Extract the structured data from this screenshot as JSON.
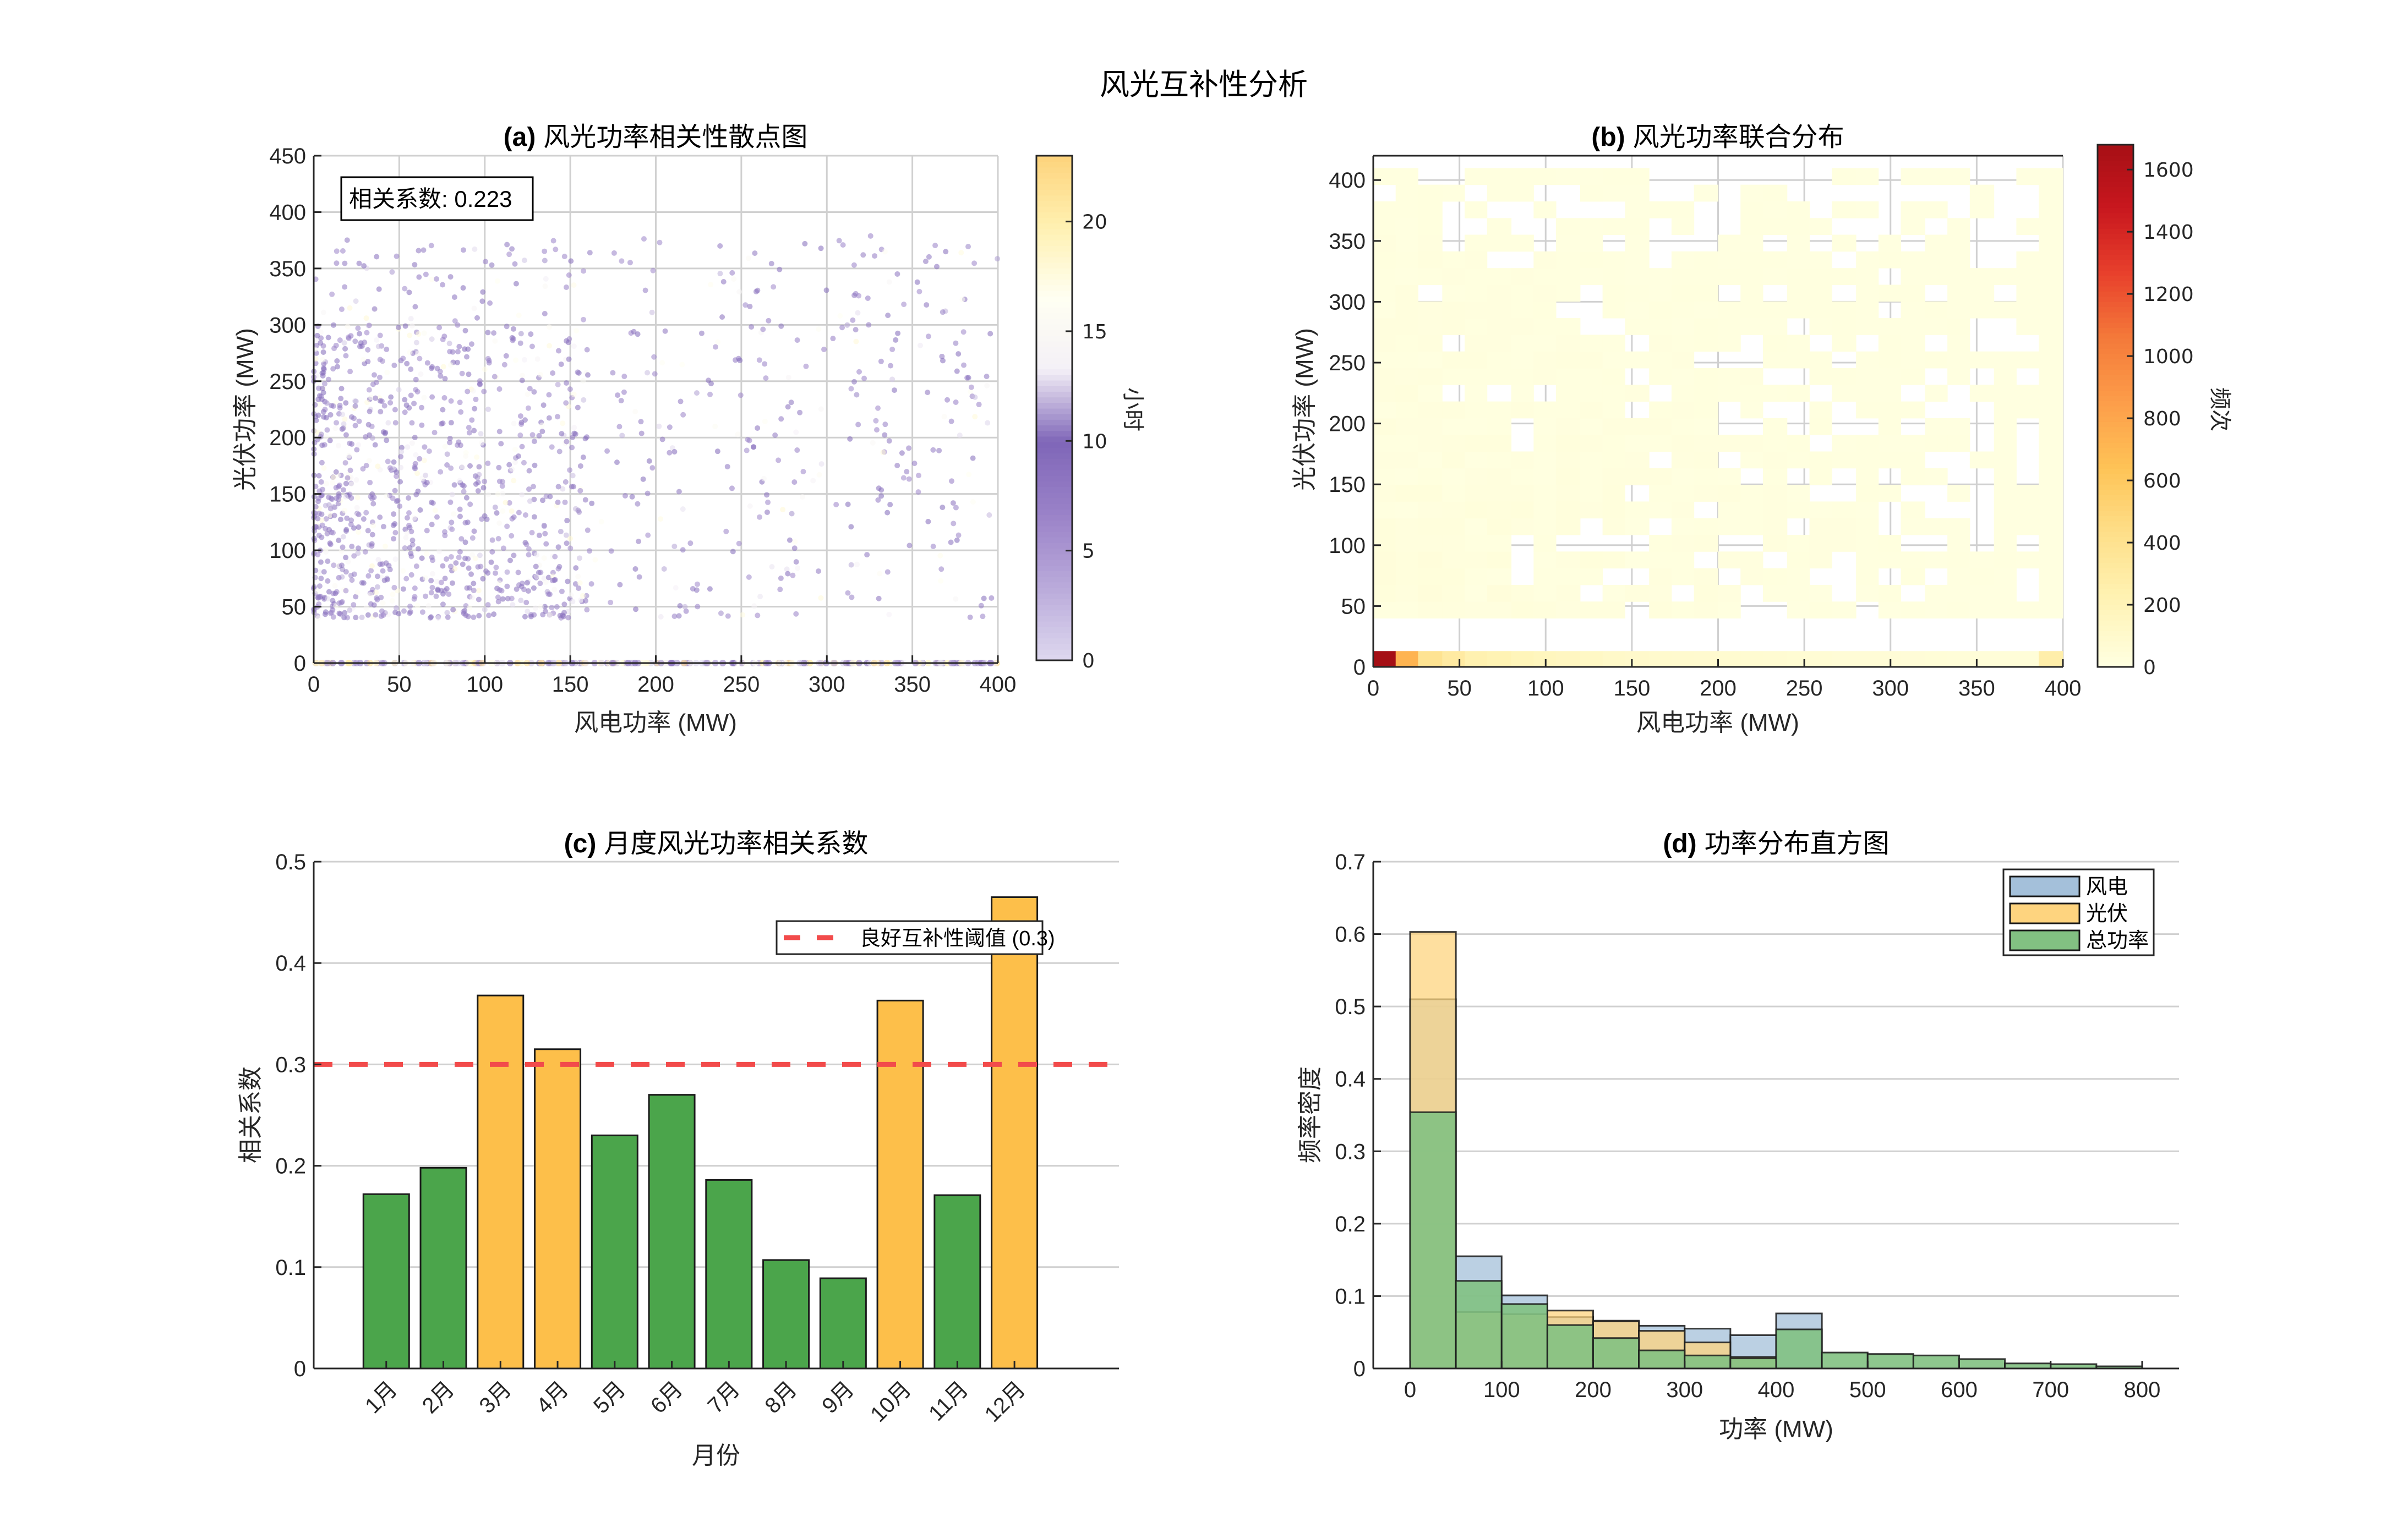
{
  "figure": {
    "title": "风光互补性分析"
  },
  "chart_data": [
    {
      "id": "a",
      "type": "scatter",
      "title_prefix": "(a)",
      "title": "风光功率相关性散点图",
      "xlabel": "风电功率 (MW)",
      "ylabel": "光伏功率 (MW)",
      "xlim": [
        0,
        400
      ],
      "ylim": [
        0,
        450
      ],
      "xticks": [
        0,
        50,
        100,
        150,
        200,
        250,
        300,
        350,
        400
      ],
      "yticks": [
        0,
        50,
        100,
        150,
        200,
        250,
        300,
        350,
        400,
        450
      ],
      "grid": true,
      "annotation": "相关系数: 0.223",
      "correlation": 0.223,
      "colorbar": {
        "label": "小时",
        "range": [
          0,
          23
        ],
        "ticks": [
          0,
          5,
          10,
          15,
          20
        ],
        "colormap": [
          "#dcd6ee",
          "#b9a9da",
          "#9a82c8",
          "#7f66b8",
          "#f4f0f7",
          "#fffff2",
          "#fff0b0",
          "#fdd27a"
        ]
      },
      "point_description": "Dense purple points concentrated at wind 0-150 MW, PV 40-300 MW; sparse scattered points across full range; many points along PV=0 colored by hour (orange/purple)"
    },
    {
      "id": "b",
      "type": "heatmap",
      "title_prefix": "(b)",
      "title": "风光功率联合分布",
      "xlabel": "风电功率 (MW)",
      "ylabel": "光伏功率 (MW)",
      "xlim": [
        0,
        400
      ],
      "ylim": [
        0,
        420
      ],
      "xticks": [
        0,
        50,
        100,
        150,
        200,
        250,
        300,
        350,
        400
      ],
      "yticks": [
        0,
        50,
        100,
        150,
        200,
        250,
        300,
        350,
        400
      ],
      "colorbar": {
        "label": "频次",
        "range": [
          0,
          1680
        ],
        "ticks": [
          0,
          200,
          400,
          600,
          800,
          1000,
          1200,
          1400,
          1600
        ],
        "colormap": [
          "#ffffe0",
          "#fff3b4",
          "#fedf8a",
          "#fec457",
          "#fd9e4a",
          "#f47a3a",
          "#e8402c",
          "#c8171e",
          "#a50f15"
        ]
      },
      "bottom_row_counts": {
        "x_bin_edges_MW": [
          0,
          13,
          26,
          40,
          53,
          66,
          80,
          93,
          106,
          120,
          133,
          146,
          160,
          173,
          186,
          200,
          213,
          226,
          240,
          253,
          266,
          280,
          293,
          306,
          320,
          333,
          346,
          360,
          373,
          386,
          400
        ],
        "counts": [
          1680,
          720,
          380,
          300,
          230,
          210,
          180,
          160,
          150,
          130,
          110,
          100,
          90,
          85,
          80,
          75,
          70,
          65,
          60,
          55,
          50,
          48,
          46,
          44,
          42,
          40,
          40,
          40,
          40,
          260
        ]
      },
      "body_description": "PV 40-400 MW region mostly low counts (1-30), empty cells scattered mainly at high wind power"
    },
    {
      "id": "c",
      "type": "bar",
      "title_prefix": "(c)",
      "title": "月度风光功率相关系数",
      "xlabel": "月份",
      "ylabel": "相关系数",
      "ylim": [
        0,
        0.5
      ],
      "yticks": [
        0,
        0.1,
        0.2,
        0.3,
        0.4,
        0.5
      ],
      "categories": [
        "1月",
        "2月",
        "3月",
        "4月",
        "5月",
        "6月",
        "7月",
        "8月",
        "9月",
        "10月",
        "11月",
        "12月"
      ],
      "values": [
        0.172,
        0.198,
        0.368,
        0.315,
        0.23,
        0.27,
        0.186,
        0.107,
        0.089,
        0.363,
        0.171,
        0.465
      ],
      "colors": {
        "above_threshold": "#fdbf4a",
        "below_threshold": "#4ba54b"
      },
      "threshold": 0.3,
      "threshold_color": "#f24b4b",
      "legend": [
        "良好互补性阈值 (0.3)"
      ],
      "grid": true
    },
    {
      "id": "d",
      "type": "bar",
      "subtype": "histogram",
      "title_prefix": "(d)",
      "title": "功率分布直方图",
      "xlabel": "功率 (MW)",
      "ylabel": "频率密度",
      "xlim": [
        -40,
        840
      ],
      "ylim": [
        0,
        0.7
      ],
      "xticks": [
        0,
        100,
        200,
        300,
        400,
        500,
        600,
        700,
        800
      ],
      "yticks": [
        0,
        0.1,
        0.2,
        0.3,
        0.4,
        0.5,
        0.6,
        0.7
      ],
      "bin_edges": [
        0,
        50,
        100,
        150,
        200,
        250,
        300,
        350,
        400,
        450,
        500,
        550,
        600,
        650,
        700,
        750,
        800
      ],
      "series": [
        {
          "name": "风电",
          "color": "#a4c0da",
          "values": [
            0.51,
            0.155,
            0.101,
            0.071,
            0.066,
            0.059,
            0.055,
            0.046,
            0.076
          ]
        },
        {
          "name": "光伏",
          "color": "#fed47f",
          "values": [
            0.603,
            0.078,
            0.075,
            0.08,
            0.065,
            0.052,
            0.036,
            0.016,
            0.001
          ]
        },
        {
          "name": "总功率",
          "color": "#82c182",
          "values": [
            0.354,
            0.121,
            0.089,
            0.06,
            0.042,
            0.025,
            0.018,
            0.014,
            0.054,
            0.022,
            0.02,
            0.018,
            0.013,
            0.007,
            0.006,
            0.003
          ]
        }
      ],
      "legend": [
        "风电",
        "光伏",
        "总功率"
      ],
      "legend_position": "northeast",
      "grid": true
    }
  ]
}
